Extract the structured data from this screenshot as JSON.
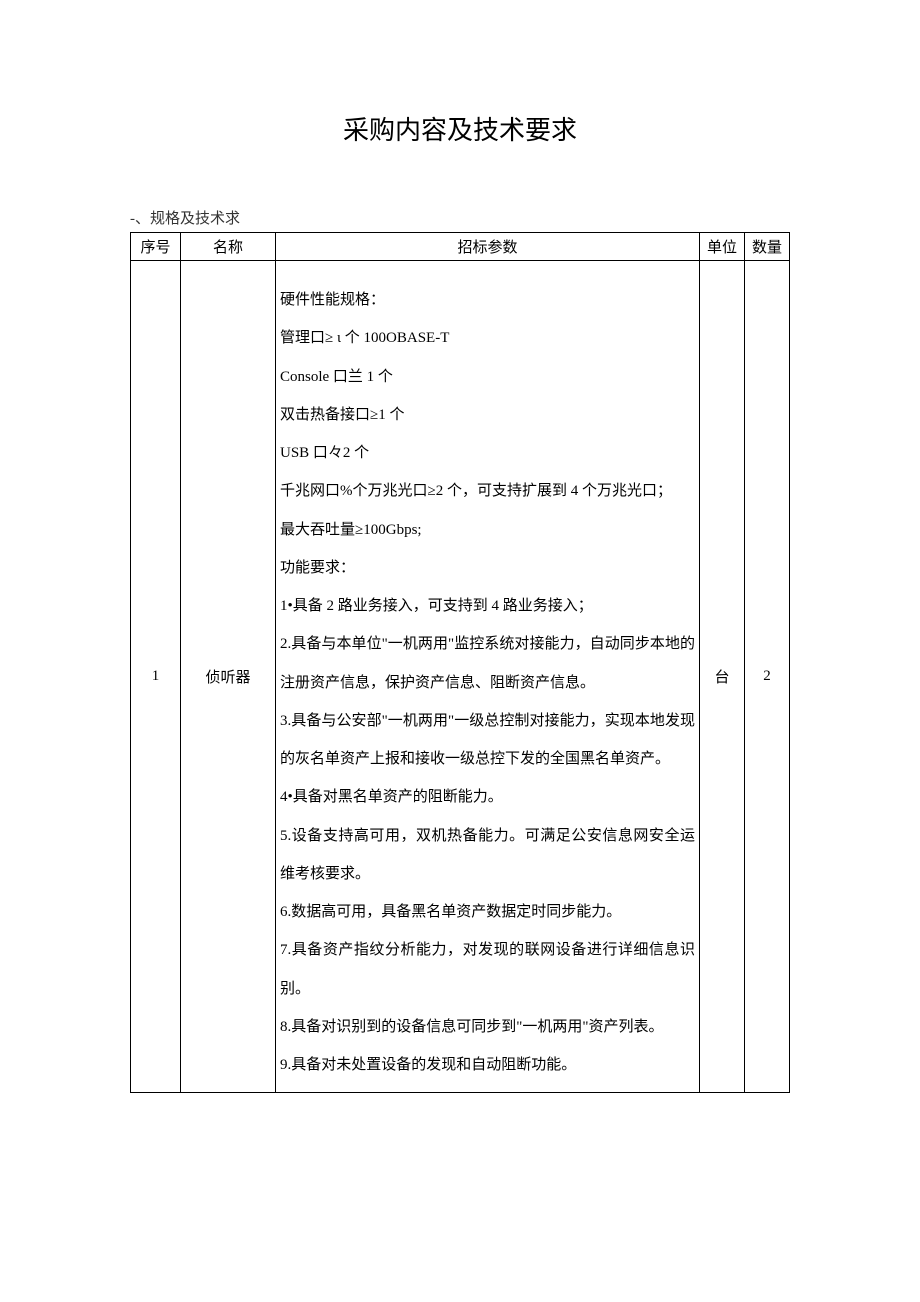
{
  "document": {
    "title": "采购内容及技术要求",
    "subtitle": "-、规格及技术求"
  },
  "table": {
    "headers": {
      "seq": "序号",
      "name": "名称",
      "params": "招标参数",
      "unit": "单位",
      "qty": "数量"
    },
    "rows": [
      {
        "seq": "1",
        "name": "侦听器",
        "unit": "台",
        "qty": "2",
        "paragraphs": [
          "硬件性能规格：",
          "管理口≥ ι 个 100OBASE-T",
          "Console 口兰 1 个",
          "双击热备接口≥1 个",
          "USB 口々2 个",
          "千兆网口%个万兆光口≥2 个，可支持扩展到 4 个万兆光口；",
          "最大吞吐量≥100Gbps;",
          "功能要求：",
          "1•具备 2 路业务接入，可支持到 4 路业务接入；",
          "2.具备与本单位\"一机两用\"监控系统对接能力，自动同步本地的注册资产信息，保护资产信息、阻断资产信息。",
          "3.具备与公安部\"一机两用\"一级总控制对接能力，实现本地发现的灰名单资产上报和接收一级总控下发的全国黑名单资产。",
          "4•具备对黑名单资产的阻断能力。",
          "5.设备支持高可用，双机热备能力。可满足公安信息网安全运维考核要求。",
          "6.数据高可用，具备黑名单资产数据定时同步能力。",
          "7.具备资产指纹分析能力，对发现的联网设备进行详细信息识别。",
          "8.具备对识别到的设备信息可同步到\"一机两用\"资产列表。",
          "9.具备对未处置设备的发现和自动阻断功能。"
        ]
      }
    ]
  }
}
